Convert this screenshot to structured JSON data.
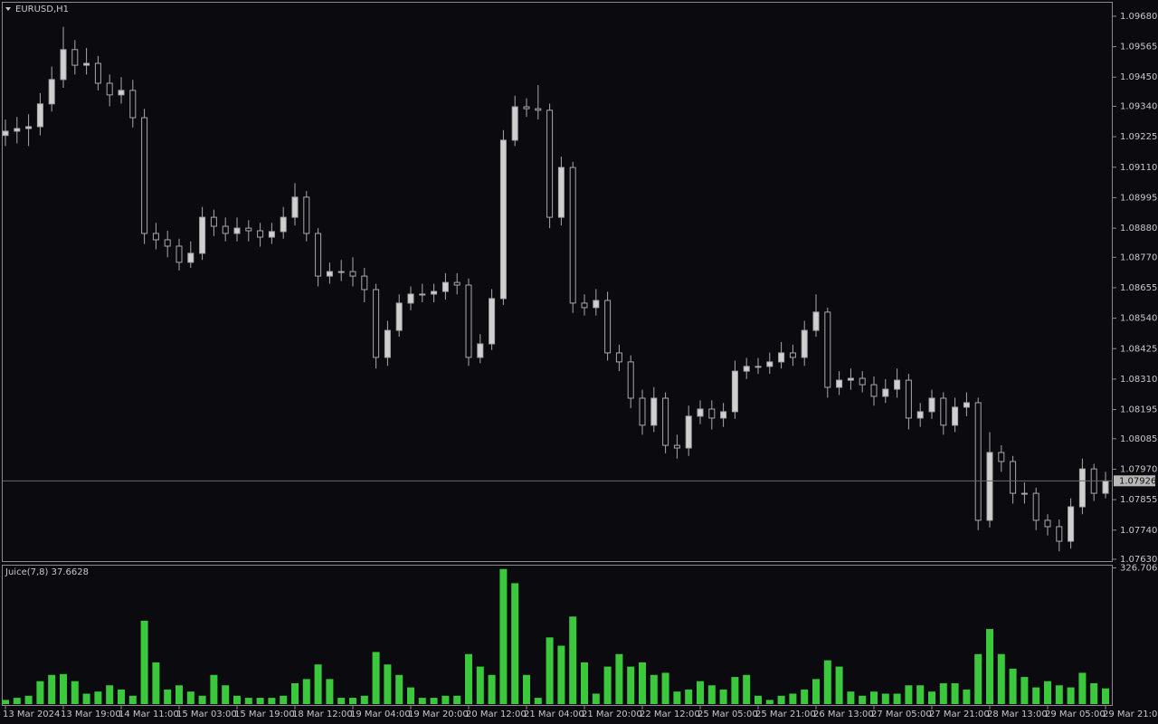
{
  "chart_data": [
    {
      "type": "candlestick",
      "title": "EURUSD,H1",
      "color": "#a8a8a8",
      "current_price": 1.07926,
      "categories": [
        "13 Mar 2024",
        null,
        null,
        null,
        null,
        "13 Mar 19:00",
        null,
        null,
        null,
        null,
        "14 Mar 11:00",
        null,
        null,
        null,
        null,
        "15 Mar 03:00",
        null,
        null,
        null,
        null,
        "15 Mar 19:00",
        null,
        null,
        null,
        null,
        "18 Mar 12:00",
        null,
        null,
        null,
        null,
        "19 Mar 04:00",
        null,
        null,
        null,
        null,
        "19 Mar 20:00",
        null,
        null,
        null,
        null,
        "20 Mar 12:00",
        null,
        null,
        null,
        null,
        "21 Mar 04:00",
        null,
        null,
        null,
        null,
        "21 Mar 20:00",
        null,
        null,
        null,
        null,
        "22 Mar 12:00",
        null,
        null,
        null,
        null,
        "25 Mar 05:00",
        null,
        null,
        null,
        null,
        "25 Mar 21:00",
        null,
        null,
        null,
        null,
        "26 Mar 13:00",
        null,
        null,
        null,
        null,
        "27 Mar 05:00",
        null,
        null,
        null,
        null,
        "27 Mar 21:00",
        null,
        null,
        null,
        null,
        "28 Mar 13:00",
        null,
        null,
        null,
        null,
        "29 Mar 05:00",
        null,
        null,
        null,
        null,
        "29 Mar 21:00"
      ],
      "open": [
        1.0923,
        1.09246,
        1.09256,
        1.09263,
        1.09349,
        1.09441,
        1.09554,
        1.09495,
        1.09502,
        1.09427,
        1.09383,
        1.094,
        1.09297,
        1.0886,
        1.08836,
        1.08812,
        1.08751,
        1.08785,
        1.08921,
        1.08887,
        1.0886,
        1.0888,
        1.0887,
        1.08846,
        1.08867,
        1.08921,
        1.08997,
        1.0886,
        1.08699,
        1.08716,
        1.08716,
        1.08699,
        1.08648,
        1.08392,
        1.08494,
        1.08597,
        1.08631,
        1.08631,
        1.08641,
        1.08675,
        1.08665,
        1.08392,
        1.08443,
        1.08614,
        1.09212,
        1.09338,
        1.09331,
        1.09325,
        1.08921,
        1.09109,
        1.08597,
        1.0858,
        1.08607,
        1.08409,
        1.08375,
        1.08238,
        1.08136,
        1.08238,
        1.0806,
        1.0805,
        1.0817,
        1.08197,
        1.08163,
        1.08187,
        1.0834,
        1.08358,
        1.08358,
        1.08375,
        1.08409,
        1.08392,
        1.08494,
        1.08563,
        1.08279,
        1.08306,
        1.08313,
        1.08289,
        1.08245,
        1.08272,
        1.08306,
        1.08163,
        1.08187,
        1.08238,
        1.08136,
        1.08204,
        1.08221,
        1.07777,
        1.08033,
        1.07999,
        1.07879,
        1.07879,
        1.07777,
        1.07753,
        1.07698,
        1.07828,
        1.07971,
        1.07879
      ],
      "high": [
        1.0929,
        1.093,
        1.0931,
        1.0939,
        1.0949,
        1.0964,
        1.0959,
        1.0956,
        1.0953,
        1.0946,
        1.0945,
        1.0944,
        1.0933,
        1.089,
        1.0887,
        1.0884,
        1.0883,
        1.0896,
        1.0895,
        1.0892,
        1.0892,
        1.0891,
        1.089,
        1.089,
        1.0896,
        1.0905,
        1.0902,
        1.0888,
        1.0875,
        1.0876,
        1.0877,
        1.0873,
        1.0867,
        1.0853,
        1.0863,
        1.0866,
        1.0867,
        1.0867,
        1.0871,
        1.0871,
        1.0869,
        1.0848,
        1.0865,
        1.0925,
        1.0938,
        1.0937,
        1.0942,
        1.0935,
        1.0915,
        1.0913,
        1.0863,
        1.0865,
        1.0864,
        1.0844,
        1.084,
        1.0827,
        1.0828,
        1.0826,
        1.081,
        1.0821,
        1.0823,
        1.0823,
        1.0822,
        1.0838,
        1.0839,
        1.0839,
        1.0841,
        1.0845,
        1.0844,
        1.0853,
        1.0863,
        1.0858,
        1.0834,
        1.0835,
        1.0834,
        1.0832,
        1.0831,
        1.0835,
        1.0833,
        1.0822,
        1.0827,
        1.0826,
        1.0824,
        1.0826,
        1.0824,
        1.0811,
        1.0806,
        1.0802,
        1.0792,
        1.079,
        1.078,
        1.0778,
        1.0786,
        1.0801,
        1.0799,
        1.0796
      ],
      "low": [
        1.0919,
        1.092,
        1.0919,
        1.0923,
        1.0932,
        1.0941,
        1.0946,
        1.0946,
        1.094,
        1.0934,
        1.0935,
        1.0926,
        1.0882,
        1.088,
        1.0877,
        1.0872,
        1.0873,
        1.0876,
        1.0885,
        1.0883,
        1.0883,
        1.0883,
        1.0881,
        1.0882,
        1.0884,
        1.0889,
        1.0883,
        1.0866,
        1.0867,
        1.0868,
        1.0866,
        1.086,
        1.0835,
        1.0836,
        1.0847,
        1.0857,
        1.086,
        1.086,
        1.0861,
        1.0863,
        1.0836,
        1.0837,
        1.0842,
        1.0859,
        1.0919,
        1.093,
        1.0929,
        1.0888,
        1.0889,
        1.0856,
        1.0855,
        1.0855,
        1.0838,
        1.0834,
        1.082,
        1.081,
        1.0811,
        1.0803,
        1.0801,
        1.0802,
        1.0814,
        1.0812,
        1.0813,
        1.0816,
        1.0831,
        1.0833,
        1.0833,
        1.0835,
        1.0836,
        1.0836,
        1.0847,
        1.0824,
        1.0825,
        1.0827,
        1.0826,
        1.0821,
        1.0822,
        1.0824,
        1.0812,
        1.0813,
        1.0816,
        1.081,
        1.0811,
        1.0817,
        1.0774,
        1.0775,
        1.0796,
        1.0784,
        1.0784,
        1.0774,
        1.0772,
        1.0766,
        1.0767,
        1.078,
        1.0785,
        1.0786
      ],
      "close": [
        1.09246,
        1.09256,
        1.09263,
        1.09349,
        1.09441,
        1.09554,
        1.09495,
        1.09502,
        1.09427,
        1.09383,
        1.094,
        1.09297,
        1.0886,
        1.08836,
        1.08812,
        1.08751,
        1.08785,
        1.08921,
        1.08887,
        1.0886,
        1.0888,
        1.0887,
        1.08846,
        1.08867,
        1.08921,
        1.08997,
        1.0886,
        1.08699,
        1.08716,
        1.08716,
        1.08699,
        1.08648,
        1.08392,
        1.08494,
        1.08597,
        1.08631,
        1.08631,
        1.08641,
        1.08675,
        1.08665,
        1.08392,
        1.08443,
        1.08614,
        1.09212,
        1.09338,
        1.09331,
        1.09325,
        1.08921,
        1.09109,
        1.08597,
        1.0858,
        1.08607,
        1.08409,
        1.08375,
        1.08238,
        1.08136,
        1.08238,
        1.0806,
        1.0805,
        1.0817,
        1.08197,
        1.08163,
        1.08187,
        1.0834,
        1.08358,
        1.08358,
        1.08375,
        1.08409,
        1.08392,
        1.08494,
        1.08563,
        1.08279,
        1.08306,
        1.08313,
        1.08289,
        1.08245,
        1.08272,
        1.08306,
        1.08163,
        1.08187,
        1.08238,
        1.08136,
        1.08204,
        1.08221,
        1.07777,
        1.08033,
        1.07999,
        1.07879,
        1.07879,
        1.07777,
        1.07753,
        1.07698,
        1.07828,
        1.07971,
        1.07879,
        1.07926
      ],
      "ylim": [
        1.07623,
        1.09731
      ],
      "yticks": [
        {
          "value": 1.0968,
          "label": "1.09680"
        },
        1.09565,
        {
          "value": 1.0945,
          "label": "1.09450"
        },
        {
          "value": 1.0934,
          "label": "1.09340"
        },
        1.09225,
        {
          "value": 1.0911,
          "label": "1.09110"
        },
        1.08995,
        {
          "value": 1.0888,
          "label": "1.08880"
        },
        {
          "value": 1.0877,
          "label": "1.08770"
        },
        1.08655,
        {
          "value": 1.0854,
          "label": "1.08540"
        },
        1.08425,
        {
          "value": 1.0831,
          "label": "1.08310"
        },
        1.08195,
        1.08085,
        {
          "value": 1.0797,
          "label": "1.07970"
        },
        1.07855,
        {
          "value": 1.0774,
          "label": "1.07740"
        },
        {
          "value": 1.0763,
          "label": "1.07630"
        }
      ]
    },
    {
      "type": "histogram",
      "title": "Juice(7,8) 37.6628",
      "color": "#3cc83c",
      "values": [
        10,
        15,
        20,
        55,
        70,
        72,
        55,
        25,
        30,
        45,
        35,
        20,
        200,
        100,
        35,
        45,
        30,
        20,
        70,
        45,
        20,
        15,
        15,
        15,
        20,
        50,
        60,
        95,
        60,
        15,
        15,
        20,
        125,
        95,
        70,
        40,
        15,
        15,
        20,
        20,
        120,
        90,
        70,
        324,
        290,
        70,
        15,
        160,
        140,
        210,
        100,
        25,
        90,
        120,
        90,
        100,
        70,
        75,
        30,
        35,
        55,
        45,
        35,
        65,
        70,
        20,
        10,
        20,
        25,
        35,
        60,
        105,
        90,
        30,
        20,
        30,
        25,
        25,
        45,
        45,
        30,
        50,
        50,
        35,
        120,
        180,
        120,
        85,
        65,
        40,
        55,
        45,
        40,
        75,
        50,
        37.6628
      ],
      "ylim": [
        0,
        330
      ],
      "yticks": [
        326.7067
      ]
    }
  ]
}
